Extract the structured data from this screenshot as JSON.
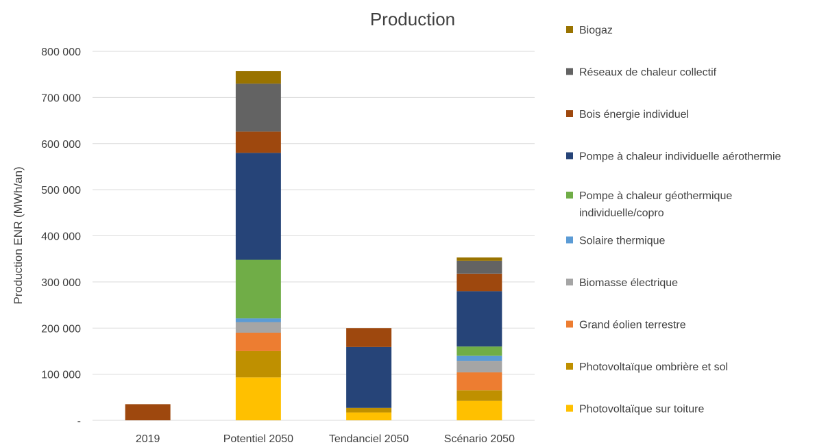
{
  "chart_data": {
    "type": "bar",
    "stacked": true,
    "title": "Production",
    "ylabel": "Production ENR (MWh/an)",
    "xlabel": "",
    "ylim": [
      0,
      800000
    ],
    "yticks": [
      {
        "value": 0,
        "label": "-"
      },
      {
        "value": 100000,
        "label": "100 000"
      },
      {
        "value": 200000,
        "label": "200 000"
      },
      {
        "value": 300000,
        "label": "300 000"
      },
      {
        "value": 400000,
        "label": "400 000"
      },
      {
        "value": 500000,
        "label": "500 000"
      },
      {
        "value": 600000,
        "label": "600 000"
      },
      {
        "value": 700000,
        "label": "700 000"
      },
      {
        "value": 800000,
        "label": "800 000"
      }
    ],
    "grid": true,
    "legend_position": "right",
    "categories": [
      "2019",
      "Potentiel 2050",
      "Tendanciel 2050",
      "Scénario 2050"
    ],
    "series": [
      {
        "name": "Photovoltaïque sur toiture",
        "color": "#ffc000",
        "values": [
          0,
          93000,
          17000,
          42000
        ]
      },
      {
        "name": "Photovoltaïque ombrière et sol",
        "color": "#bf9000",
        "values": [
          0,
          57000,
          10000,
          23000
        ]
      },
      {
        "name": "Grand éolien terrestre",
        "color": "#ed7d31",
        "values": [
          0,
          40000,
          0,
          39000
        ]
      },
      {
        "name": "Biomasse électrique",
        "color": "#a5a5a5",
        "values": [
          0,
          23000,
          0,
          25000
        ]
      },
      {
        "name": "Solaire thermique",
        "color": "#5b9bd5",
        "values": [
          0,
          8000,
          0,
          11000
        ]
      },
      {
        "name": "Pompe à chaleur géothermique individuelle/copro",
        "color": "#70ad47",
        "values": [
          0,
          127000,
          0,
          20000
        ]
      },
      {
        "name": "Pompe à chaleur individuelle aérothermie",
        "color": "#264478",
        "values": [
          0,
          232000,
          132000,
          120000
        ]
      },
      {
        "name": "Bois énergie individuel",
        "color": "#9e480e",
        "values": [
          35000,
          46000,
          41000,
          38000
        ]
      },
      {
        "name": "Réseaux de chaleur collectif",
        "color": "#636363",
        "values": [
          0,
          104000,
          0,
          28000
        ]
      },
      {
        "name": "Biogaz",
        "color": "#997300",
        "values": [
          0,
          27000,
          0,
          7000
        ]
      }
    ],
    "legend_order": [
      {
        "lines": [
          "Biogaz"
        ],
        "color": "#997300"
      },
      {
        "lines": [
          "Réseaux de chaleur collectif"
        ],
        "color": "#636363"
      },
      {
        "lines": [
          "Bois énergie individuel"
        ],
        "color": "#9e480e"
      },
      {
        "lines": [
          "Pompe à chaleur individuelle aérothermie"
        ],
        "color": "#264478"
      },
      {
        "lines": [
          "Pompe à chaleur géothermique",
          "individuelle/copro"
        ],
        "color": "#70ad47"
      },
      {
        "lines": [
          "Solaire thermique"
        ],
        "color": "#5b9bd5"
      },
      {
        "lines": [
          "Biomasse électrique"
        ],
        "color": "#a5a5a5"
      },
      {
        "lines": [
          "Grand éolien terrestre"
        ],
        "color": "#ed7d31"
      },
      {
        "lines": [
          "Photovoltaïque ombrière et sol"
        ],
        "color": "#bf9000"
      },
      {
        "lines": [
          "Photovoltaïque sur toiture"
        ],
        "color": "#ffc000"
      }
    ]
  }
}
